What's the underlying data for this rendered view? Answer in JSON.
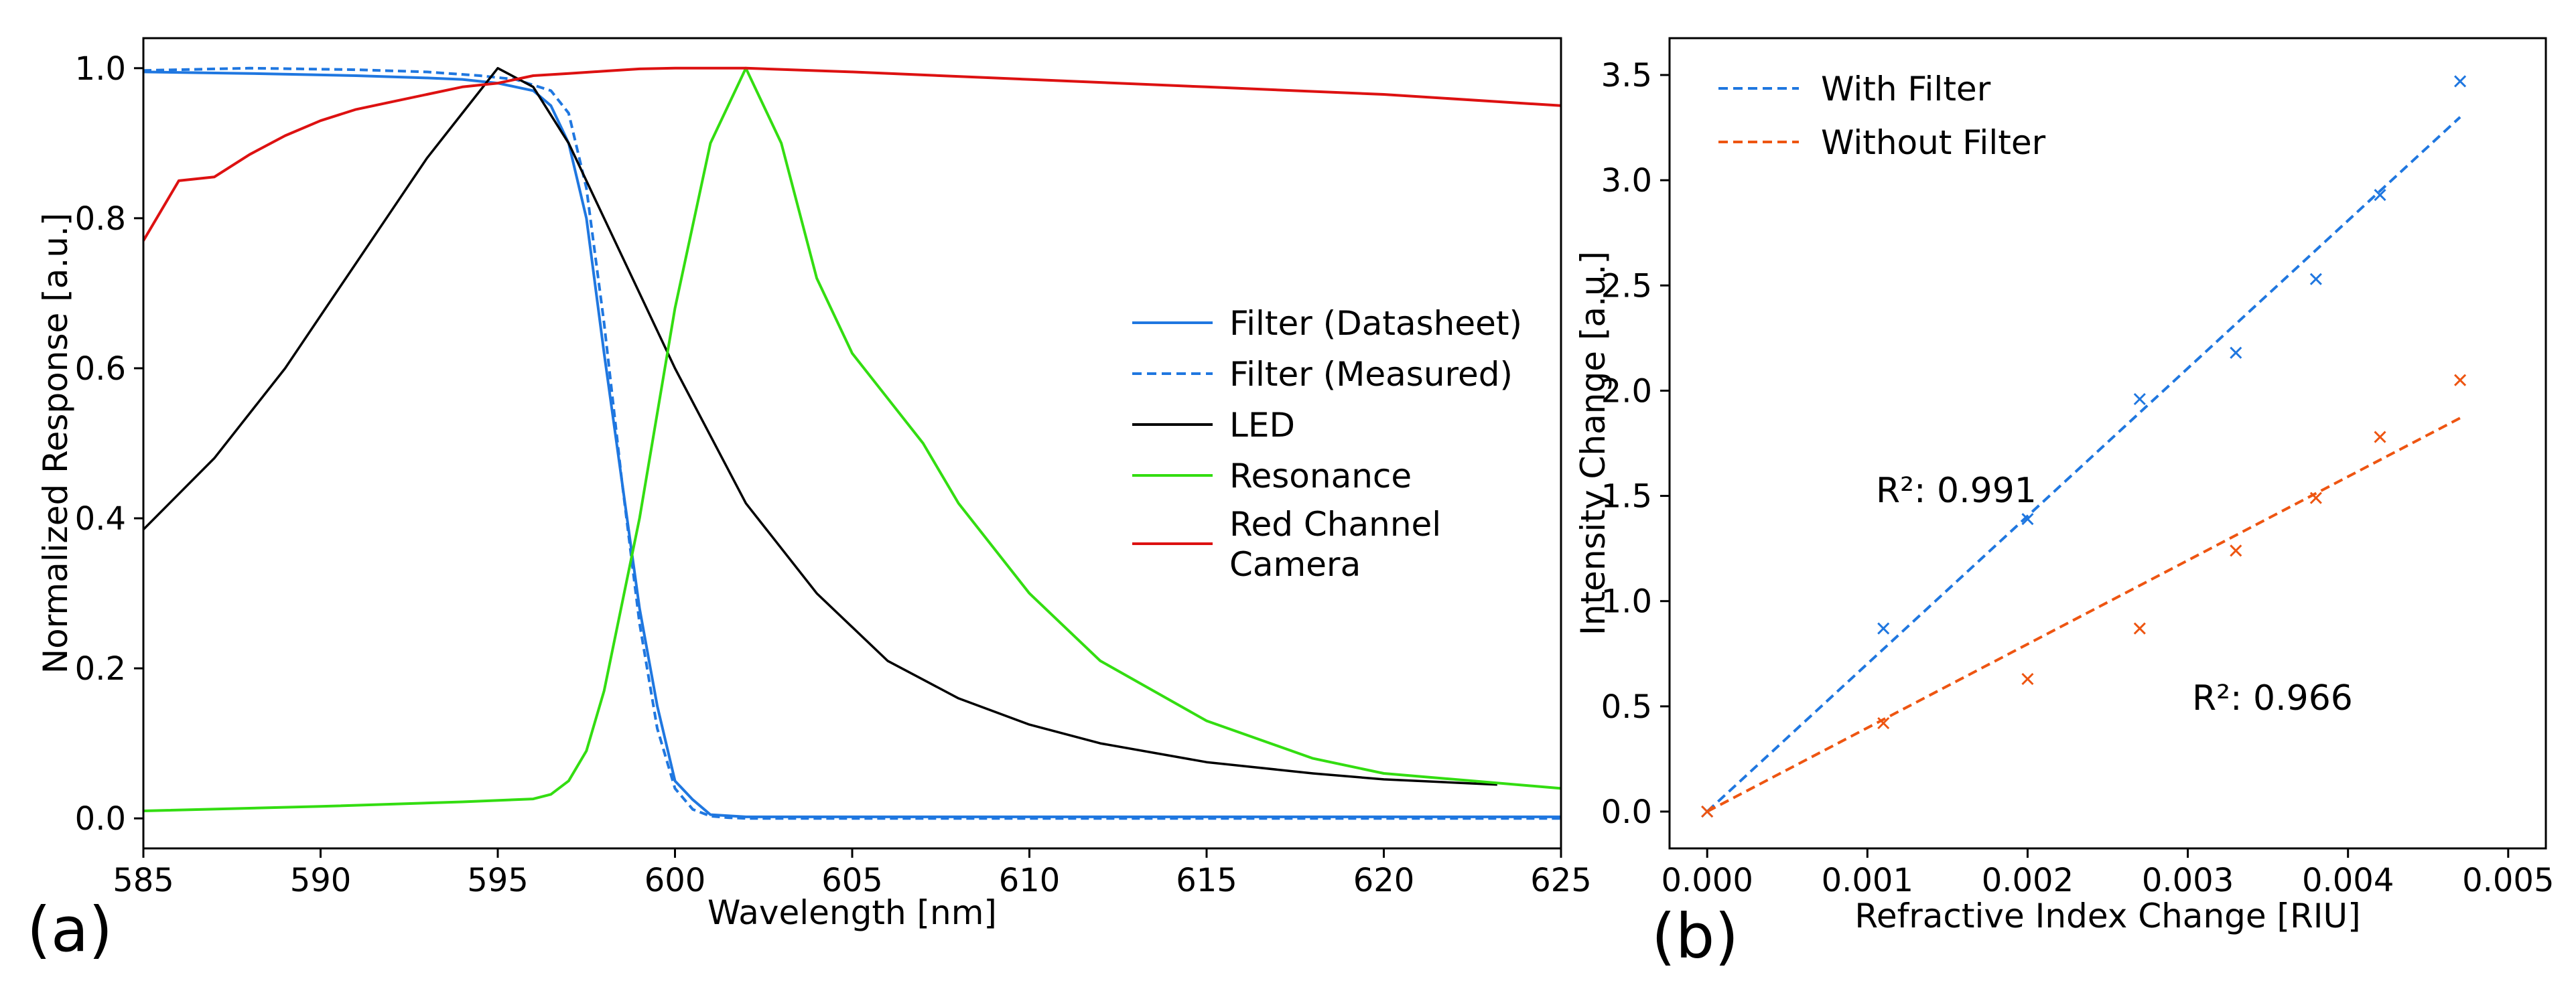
{
  "chart_data": [
    {
      "panel": "(a)",
      "type": "line",
      "title": "",
      "xlabel": "Wavelength [nm]",
      "ylabel": "Normalized Response [a.u.]",
      "xlim": [
        585,
        625
      ],
      "ylim": [
        -0.04,
        1.04
      ],
      "x_ticks": [
        585,
        590,
        595,
        600,
        605,
        610,
        615,
        620,
        625
      ],
      "y_ticks": [
        0.0,
        0.2,
        0.4,
        0.6,
        0.8,
        1.0
      ],
      "x_tick_labels": [
        "585",
        "590",
        "595",
        "600",
        "605",
        "610",
        "615",
        "620",
        "625"
      ],
      "y_tick_labels": [
        "0.0",
        "0.2",
        "0.4",
        "0.6",
        "0.8",
        "1.0"
      ],
      "grid": false,
      "legend_position": "center-right",
      "series": [
        {
          "name": "Filter (Datasheet)",
          "color": "#1f77e0",
          "style": "solid",
          "x": [
            585,
            588,
            591,
            593,
            594,
            595,
            596,
            596.5,
            597,
            597.5,
            598,
            598.5,
            599,
            599.5,
            600,
            600.5,
            601,
            602,
            610,
            620,
            625
          ],
          "y": [
            0.995,
            0.993,
            0.99,
            0.987,
            0.985,
            0.98,
            0.97,
            0.95,
            0.9,
            0.8,
            0.62,
            0.45,
            0.28,
            0.15,
            0.05,
            0.025,
            0.005,
            0.002,
            0.002,
            0.002,
            0.002
          ]
        },
        {
          "name": "Filter (Measured)",
          "color": "#1f77e0",
          "style": "dashed",
          "x": [
            585,
            588,
            591,
            593,
            594.5,
            595.5,
            596.5,
            597,
            597.5,
            598,
            598.5,
            599,
            599.5,
            600,
            600.5,
            601,
            601.5,
            602,
            610,
            620,
            625
          ],
          "y": [
            0.997,
            1.0,
            0.998,
            0.995,
            0.99,
            0.985,
            0.97,
            0.94,
            0.84,
            0.66,
            0.45,
            0.26,
            0.12,
            0.04,
            0.012,
            0.003,
            0.001,
            0.0,
            0.0,
            0.0,
            0.0
          ]
        },
        {
          "name": "LED",
          "color": "#000000",
          "style": "solid",
          "x": [
            585,
            587,
            589,
            590,
            591,
            592,
            593,
            594,
            595,
            596,
            597,
            598,
            599,
            600,
            602,
            604,
            606,
            608,
            610,
            612,
            615,
            618,
            620,
            623.2
          ],
          "y": [
            0.385,
            0.48,
            0.6,
            0.67,
            0.74,
            0.81,
            0.88,
            0.94,
            1.0,
            0.975,
            0.9,
            0.8,
            0.7,
            0.6,
            0.42,
            0.3,
            0.21,
            0.16,
            0.125,
            0.1,
            0.075,
            0.06,
            0.052,
            0.045
          ]
        },
        {
          "name": "Resonance",
          "color": "#33dd11",
          "style": "solid",
          "x": [
            585,
            590,
            594,
            596,
            596.5,
            597,
            597.5,
            598,
            599,
            600,
            601,
            602,
            603,
            604,
            605,
            606,
            607,
            608,
            610,
            612,
            615,
            618,
            620,
            625
          ],
          "y": [
            0.01,
            0.016,
            0.022,
            0.026,
            0.032,
            0.05,
            0.09,
            0.17,
            0.4,
            0.68,
            0.9,
            1.0,
            0.9,
            0.72,
            0.62,
            0.56,
            0.5,
            0.42,
            0.3,
            0.21,
            0.13,
            0.08,
            0.06,
            0.04
          ]
        },
        {
          "name": "Red Channel Camera",
          "color": "#dd1111",
          "style": "solid",
          "x": [
            585,
            586,
            587,
            588,
            589,
            590,
            591,
            592,
            593,
            594,
            595,
            596,
            597,
            598,
            599,
            600,
            602,
            605,
            610,
            615,
            620,
            625
          ],
          "y": [
            0.77,
            0.85,
            0.855,
            0.885,
            0.91,
            0.93,
            0.945,
            0.955,
            0.965,
            0.975,
            0.98,
            0.99,
            0.993,
            0.996,
            0.999,
            1.0,
            1.0,
            0.995,
            0.985,
            0.975,
            0.965,
            0.95
          ]
        }
      ],
      "legend": {
        "entries": [
          "Filter (Datasheet)",
          "Filter (Measured)",
          "LED",
          "Resonance",
          "Red Channel Camera"
        ],
        "text_lines": [
          [
            "Filter (Datasheet)"
          ],
          [
            "Filter (Measured)"
          ],
          [
            "LED"
          ],
          [
            "Resonance"
          ],
          [
            "Red Channel",
            "Camera"
          ]
        ]
      }
    },
    {
      "panel": "(b)",
      "type": "scatter",
      "title": "",
      "xlabel": "Refractive Index Change [RIU]",
      "ylabel": "Intensity Change [a.u.]",
      "xlim": [
        -0.000235,
        0.005235
      ],
      "ylim": [
        -0.175,
        3.675
      ],
      "x_ticks": [
        0.0,
        0.001,
        0.002,
        0.003,
        0.004,
        0.005
      ],
      "y_ticks": [
        0.0,
        0.5,
        1.0,
        1.5,
        2.0,
        2.5,
        3.0,
        3.5
      ],
      "x_tick_labels": [
        "0.000",
        "0.001",
        "0.002",
        "0.003",
        "0.004",
        "0.005"
      ],
      "y_tick_labels": [
        "0.0",
        "0.5",
        "1.0",
        "1.5",
        "2.0",
        "2.5",
        "3.0",
        "3.5"
      ],
      "grid": false,
      "legend_position": "top-left",
      "series": [
        {
          "name": "With Filter",
          "color": "#1f77e0",
          "points": {
            "x": [
              0.0,
              0.0011,
              0.002,
              0.0027,
              0.0033,
              0.0038,
              0.0042,
              0.0047
            ],
            "y": [
              0.0,
              0.87,
              1.39,
              1.96,
              2.18,
              2.53,
              2.93,
              3.47
            ]
          },
          "fit": {
            "x": [
              0.0,
              0.0047
            ],
            "y": [
              0.0,
              3.3
            ],
            "r2_label": "R²: 0.991"
          }
        },
        {
          "name": "Without Filter",
          "color": "#ee5511",
          "points": {
            "x": [
              0.0,
              0.0011,
              0.002,
              0.0027,
              0.0033,
              0.0038,
              0.0042,
              0.0047
            ],
            "y": [
              0.0,
              0.42,
              0.63,
              0.87,
              1.24,
              1.49,
              1.78,
              2.05
            ]
          },
          "fit": {
            "x": [
              0.0,
              0.0047
            ],
            "y": [
              0.0,
              1.87
            ],
            "r2_label": "R²: 0.966"
          }
        }
      ],
      "legend": {
        "entries": [
          "With Filter",
          "Without Filter"
        ]
      }
    }
  ]
}
